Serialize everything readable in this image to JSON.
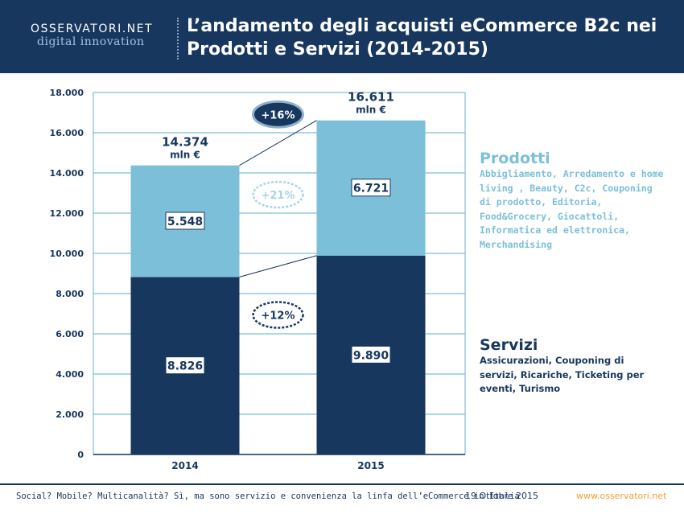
{
  "header": {
    "logo_top": "OSSERVATORI.NET",
    "logo_bottom": "digital innovation",
    "title_line1": "L’andamento degli acquisti eCommerce B2c nei",
    "title_line2": "Prodotti e Servizi (2014-2015)"
  },
  "chart_data": {
    "type": "bar",
    "stacked": true,
    "categories": [
      "2014",
      "2015"
    ],
    "series": [
      {
        "name": "Servizi",
        "values": [
          8826,
          9890
        ],
        "labels": [
          "8.826",
          "9.890"
        ],
        "color": "#17375e"
      },
      {
        "name": "Prodotti",
        "values": [
          5548,
          6721
        ],
        "labels": [
          "5.548",
          "6.721"
        ],
        "color": "#7cbfd8"
      }
    ],
    "totals": [
      {
        "value": 14374,
        "label": "14.374",
        "unit": "mln €"
      },
      {
        "value": 16611,
        "label": "16.611",
        "unit": "mln €"
      }
    ],
    "growth": {
      "total": "+16%",
      "prodotti": "+21%",
      "servizi": "+12%"
    },
    "ylim": [
      0,
      18000
    ],
    "yticks": [
      0,
      2000,
      4000,
      6000,
      8000,
      10000,
      12000,
      14000,
      16000,
      18000
    ],
    "ytick_labels": [
      "0",
      "2.000",
      "4.000",
      "6.000",
      "8.000",
      "10.000",
      "12.000",
      "14.000",
      "16.000",
      "18.000"
    ],
    "grid": true,
    "title": "",
    "xlabel": "",
    "ylabel": ""
  },
  "legend": {
    "prodotti": {
      "title": "Prodotti",
      "desc": "Abbigliamento, Arredamento e home living , Beauty, C2c, Couponing di prodotto, Editoria, Food&Grocery, Giocattoli, Informatica ed elettronica, Merchandising"
    },
    "servizi": {
      "title": "Servizi",
      "desc": "Assicurazioni, Couponing di servizi, Ricariche, Ticketing per eventi, Turismo"
    }
  },
  "footer": {
    "left": "Social? Mobile? Multicanalità? Sì, ma sono servizio e convenienza la linfa dell’eCommerce in Italia",
    "date": "19 Ottobre 2015",
    "right": "www.osservatori.net"
  },
  "colors": {
    "header": "#17375e",
    "servizi": "#17375e",
    "prodotti": "#7cbfd8",
    "grid": "#7cbfd8",
    "accent": "#f0a030"
  }
}
